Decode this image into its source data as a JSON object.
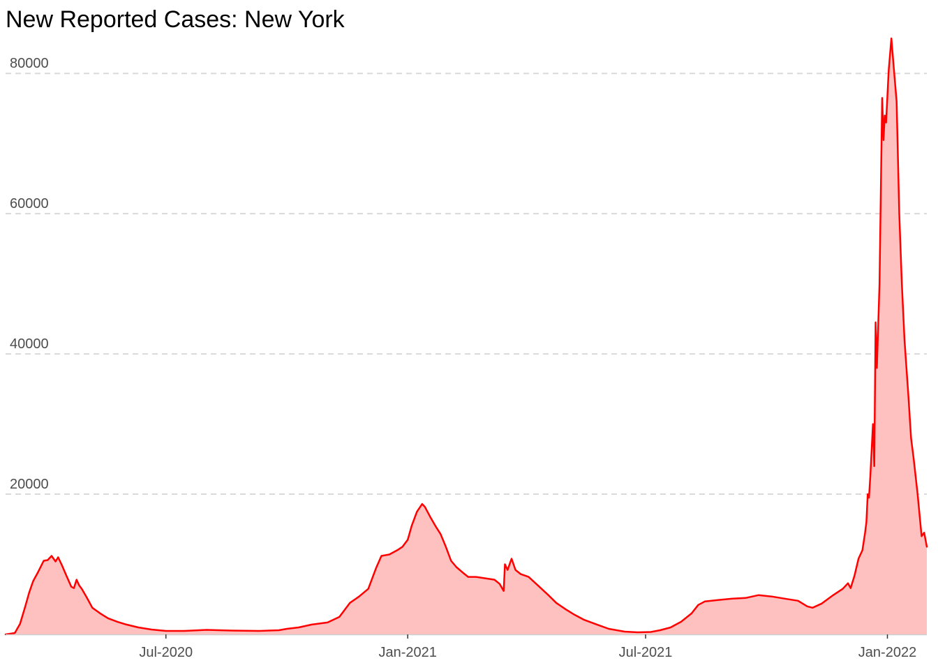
{
  "chart_data": {
    "type": "area",
    "title": "New Reported Cases: New York",
    "xlabel": "",
    "ylabel": "",
    "x_tick_labels": [
      "Jul-2020",
      "Jan-2021",
      "Jul-2021",
      "Jan-2022"
    ],
    "x_tick_dates": [
      "2020-07-01",
      "2021-01-01",
      "2021-07-01",
      "2022-01-01"
    ],
    "y_tick_labels": [
      "20000",
      "40000",
      "60000",
      "80000"
    ],
    "y_ticks": [
      20000,
      40000,
      60000,
      80000
    ],
    "xlim": [
      "2020-03-01",
      "2022-01-31"
    ],
    "ylim": [
      0,
      85000
    ],
    "grid": "horizontal dashed",
    "legend": "none",
    "colors": {
      "line": "#ff0000",
      "fill": "#ffc0c0",
      "grid": "#d9d9d9",
      "tick_text": "#4d4d4d"
    },
    "series": [
      {
        "points": [
          [
            "2020-03-01",
            0
          ],
          [
            "2020-03-08",
            200
          ],
          [
            "2020-03-12",
            1500
          ],
          [
            "2020-03-16",
            4000
          ],
          [
            "2020-03-19",
            6000
          ],
          [
            "2020-03-22",
            7600
          ],
          [
            "2020-03-26",
            9000
          ],
          [
            "2020-03-30",
            10500
          ],
          [
            "2020-04-02",
            10600
          ],
          [
            "2020-04-05",
            11200
          ],
          [
            "2020-04-08",
            10400
          ],
          [
            "2020-04-10",
            11000
          ],
          [
            "2020-04-13",
            9800
          ],
          [
            "2020-04-16",
            8500
          ],
          [
            "2020-04-20",
            6800
          ],
          [
            "2020-04-22",
            6600
          ],
          [
            "2020-04-24",
            7800
          ],
          [
            "2020-04-26",
            7000
          ],
          [
            "2020-04-28",
            6500
          ],
          [
            "2020-05-02",
            5200
          ],
          [
            "2020-05-06",
            3800
          ],
          [
            "2020-05-12",
            3000
          ],
          [
            "2020-05-18",
            2300
          ],
          [
            "2020-05-25",
            1800
          ],
          [
            "2020-06-01",
            1400
          ],
          [
            "2020-06-10",
            1000
          ],
          [
            "2020-06-20",
            700
          ],
          [
            "2020-07-01",
            500
          ],
          [
            "2020-07-15",
            500
          ],
          [
            "2020-08-01",
            650
          ],
          [
            "2020-08-20",
            550
          ],
          [
            "2020-09-10",
            500
          ],
          [
            "2020-09-25",
            600
          ],
          [
            "2020-10-01",
            800
          ],
          [
            "2020-10-10",
            1000
          ],
          [
            "2020-10-20",
            1400
          ],
          [
            "2020-11-01",
            1700
          ],
          [
            "2020-11-10",
            2500
          ],
          [
            "2020-11-18",
            4500
          ],
          [
            "2020-11-25",
            5400
          ],
          [
            "2020-12-02",
            6500
          ],
          [
            "2020-12-08",
            9500
          ],
          [
            "2020-12-12",
            11200
          ],
          [
            "2020-12-18",
            11400
          ],
          [
            "2020-12-24",
            12000
          ],
          [
            "2020-12-28",
            12500
          ],
          [
            "2021-01-01",
            13500
          ],
          [
            "2021-01-04",
            15500
          ],
          [
            "2021-01-08",
            17500
          ],
          [
            "2021-01-12",
            18600
          ],
          [
            "2021-01-14",
            18200
          ],
          [
            "2021-01-18",
            16800
          ],
          [
            "2021-01-22",
            15500
          ],
          [
            "2021-01-26",
            14300
          ],
          [
            "2021-01-30",
            12500
          ],
          [
            "2021-02-03",
            10500
          ],
          [
            "2021-02-07",
            9600
          ],
          [
            "2021-02-12",
            8800
          ],
          [
            "2021-02-16",
            8200
          ],
          [
            "2021-02-22",
            8200
          ],
          [
            "2021-03-01",
            8000
          ],
          [
            "2021-03-08",
            7800
          ],
          [
            "2021-03-12",
            7200
          ],
          [
            "2021-03-15",
            6200
          ],
          [
            "2021-03-16",
            10000
          ],
          [
            "2021-03-18",
            9200
          ],
          [
            "2021-03-21",
            10800
          ],
          [
            "2021-03-24",
            9200
          ],
          [
            "2021-03-28",
            8600
          ],
          [
            "2021-04-03",
            8200
          ],
          [
            "2021-04-10",
            7000
          ],
          [
            "2021-04-18",
            5600
          ],
          [
            "2021-04-24",
            4500
          ],
          [
            "2021-05-01",
            3600
          ],
          [
            "2021-05-08",
            2800
          ],
          [
            "2021-05-15",
            2100
          ],
          [
            "2021-05-25",
            1400
          ],
          [
            "2021-06-03",
            800
          ],
          [
            "2021-06-15",
            400
          ],
          [
            "2021-06-25",
            300
          ],
          [
            "2021-07-05",
            350
          ],
          [
            "2021-07-12",
            600
          ],
          [
            "2021-07-20",
            1000
          ],
          [
            "2021-07-28",
            1800
          ],
          [
            "2021-08-05",
            3000
          ],
          [
            "2021-08-10",
            4200
          ],
          [
            "2021-08-15",
            4700
          ],
          [
            "2021-08-25",
            4900
          ],
          [
            "2021-09-05",
            5100
          ],
          [
            "2021-09-15",
            5200
          ],
          [
            "2021-09-25",
            5600
          ],
          [
            "2021-10-05",
            5400
          ],
          [
            "2021-10-15",
            5100
          ],
          [
            "2021-10-25",
            4800
          ],
          [
            "2021-11-01",
            4000
          ],
          [
            "2021-11-05",
            3800
          ],
          [
            "2021-11-12",
            4400
          ],
          [
            "2021-11-20",
            5500
          ],
          [
            "2021-11-28",
            6500
          ],
          [
            "2021-12-02",
            7300
          ],
          [
            "2021-12-04",
            6600
          ],
          [
            "2021-12-07",
            8400
          ],
          [
            "2021-12-10",
            10800
          ],
          [
            "2021-12-13",
            12000
          ],
          [
            "2021-12-15",
            14500
          ],
          [
            "2021-12-16",
            16000
          ],
          [
            "2021-12-17",
            20000
          ],
          [
            "2021-12-18",
            19500
          ],
          [
            "2021-12-19",
            22500
          ],
          [
            "2021-12-21",
            30000
          ],
          [
            "2021-12-22",
            24000
          ],
          [
            "2021-12-23",
            44500
          ],
          [
            "2021-12-24",
            38000
          ],
          [
            "2021-12-26",
            50000
          ],
          [
            "2021-12-28",
            76500
          ],
          [
            "2021-12-29",
            70500
          ],
          [
            "2021-12-30",
            74000
          ],
          [
            "2021-12-31",
            73000
          ],
          [
            "2022-01-02",
            80500
          ],
          [
            "2022-01-04",
            85000
          ],
          [
            "2022-01-06",
            80500
          ],
          [
            "2022-01-08",
            76000
          ],
          [
            "2022-01-10",
            60000
          ],
          [
            "2022-01-12",
            50000
          ],
          [
            "2022-01-14",
            42000
          ],
          [
            "2022-01-17",
            34000
          ],
          [
            "2022-01-19",
            28000
          ],
          [
            "2022-01-21",
            25000
          ],
          [
            "2022-01-24",
            20000
          ],
          [
            "2022-01-27",
            14000
          ],
          [
            "2022-01-29",
            14500
          ],
          [
            "2022-01-31",
            12500
          ]
        ]
      }
    ]
  }
}
